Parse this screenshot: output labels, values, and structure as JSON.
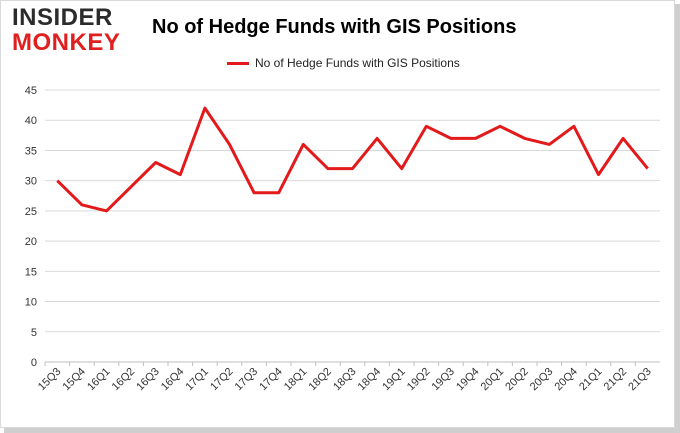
{
  "brand": {
    "line1": "INSIDER",
    "line2": "MONKEY"
  },
  "chart_data": {
    "type": "line",
    "title": "No of Hedge Funds with GIS Positions",
    "legend": {
      "position": "top-center"
    },
    "categories": [
      "15Q3",
      "15Q4",
      "16Q1",
      "16Q2",
      "16Q3",
      "16Q4",
      "17Q1",
      "17Q2",
      "17Q3",
      "17Q4",
      "18Q1",
      "18Q2",
      "18Q3",
      "18Q4",
      "19Q1",
      "19Q2",
      "19Q3",
      "19Q4",
      "20Q1",
      "20Q2",
      "20Q3",
      "20Q4",
      "21Q1",
      "21Q2",
      "21Q3"
    ],
    "series": [
      {
        "name": "No of Hedge Funds with GIS Positions",
        "values": [
          30,
          26,
          25,
          29,
          33,
          31,
          42,
          36,
          28,
          28,
          36,
          32,
          32,
          37,
          32,
          39,
          37,
          37,
          39,
          37,
          36,
          39,
          31,
          37,
          32
        ],
        "color": "#e31a1c"
      }
    ],
    "ylim": [
      0,
      45
    ],
    "yticks": [
      0,
      5,
      10,
      15,
      20,
      25,
      30,
      35,
      40,
      45
    ],
    "grid": true
  }
}
